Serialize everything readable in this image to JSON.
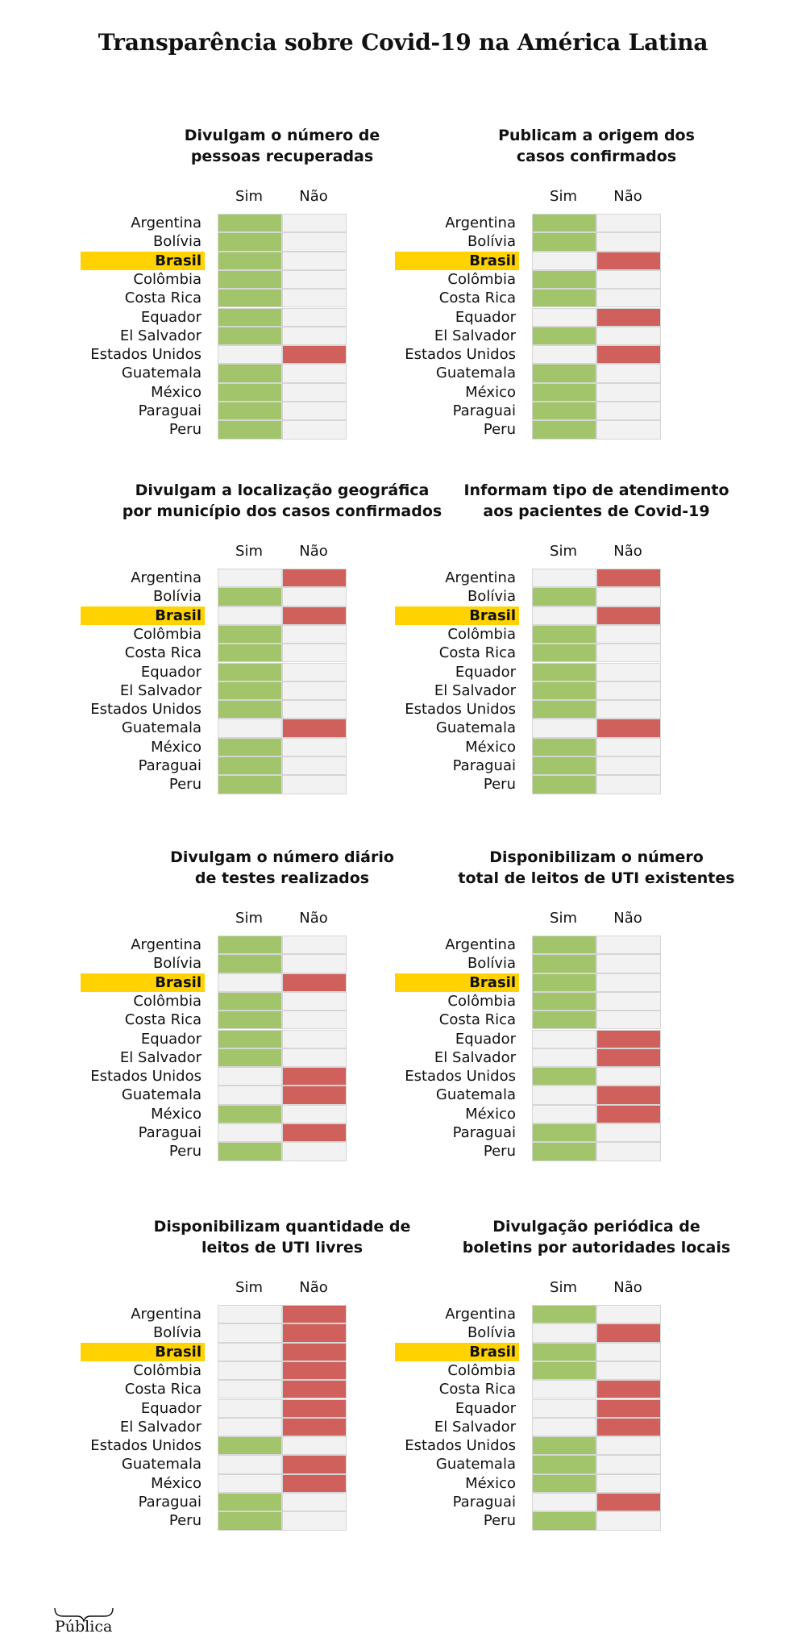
{
  "title": "Transparência sobre Covid-19 na América Latina",
  "logo_text": "Pública",
  "colors": {
    "sim": "#a2c46a",
    "nao": "#d0605c",
    "empty": "#f2f2f2",
    "highlight": "#ffd200"
  },
  "highlight_country": "Brasil",
  "chart_data": [
    {
      "type": "table",
      "title_lines": [
        "Divulgam o número de",
        "pessoas recuperadas"
      ],
      "columns": [
        "Sim",
        "Não"
      ],
      "rows": [
        {
          "country": "Argentina",
          "value": "Sim"
        },
        {
          "country": "Bolívia",
          "value": "Sim"
        },
        {
          "country": "Brasil",
          "value": "Sim"
        },
        {
          "country": "Colômbia",
          "value": "Sim"
        },
        {
          "country": "Costa Rica",
          "value": "Sim"
        },
        {
          "country": "Equador",
          "value": "Sim"
        },
        {
          "country": "El Salvador",
          "value": "Sim"
        },
        {
          "country": "Estados Unidos",
          "value": "Não"
        },
        {
          "country": "Guatemala",
          "value": "Sim"
        },
        {
          "country": "México",
          "value": "Sim"
        },
        {
          "country": "Paraguai",
          "value": "Sim"
        },
        {
          "country": "Peru",
          "value": "Sim"
        }
      ]
    },
    {
      "type": "table",
      "title_lines": [
        "Publicam a origem dos",
        "casos confirmados"
      ],
      "columns": [
        "Sim",
        "Não"
      ],
      "rows": [
        {
          "country": "Argentina",
          "value": "Sim"
        },
        {
          "country": "Bolívia",
          "value": "Sim"
        },
        {
          "country": "Brasil",
          "value": "Não"
        },
        {
          "country": "Colômbia",
          "value": "Sim"
        },
        {
          "country": "Costa Rica",
          "value": "Sim"
        },
        {
          "country": "Equador",
          "value": "Não"
        },
        {
          "country": "El Salvador",
          "value": "Sim"
        },
        {
          "country": "Estados Unidos",
          "value": "Não"
        },
        {
          "country": "Guatemala",
          "value": "Sim"
        },
        {
          "country": "México",
          "value": "Sim"
        },
        {
          "country": "Paraguai",
          "value": "Sim"
        },
        {
          "country": "Peru",
          "value": "Sim"
        }
      ]
    },
    {
      "type": "table",
      "title_lines": [
        "Divulgam a localização geográfica",
        "por município dos casos confirmados"
      ],
      "columns": [
        "Sim",
        "Não"
      ],
      "rows": [
        {
          "country": "Argentina",
          "value": "Não"
        },
        {
          "country": "Bolívia",
          "value": "Sim"
        },
        {
          "country": "Brasil",
          "value": "Não"
        },
        {
          "country": "Colômbia",
          "value": "Sim"
        },
        {
          "country": "Costa Rica",
          "value": "Sim"
        },
        {
          "country": "Equador",
          "value": "Sim"
        },
        {
          "country": "El Salvador",
          "value": "Sim"
        },
        {
          "country": "Estados Unidos",
          "value": "Sim"
        },
        {
          "country": "Guatemala",
          "value": "Não"
        },
        {
          "country": "México",
          "value": "Sim"
        },
        {
          "country": "Paraguai",
          "value": "Sim"
        },
        {
          "country": "Peru",
          "value": "Sim"
        }
      ]
    },
    {
      "type": "table",
      "title_lines": [
        "Informam tipo de atendimento",
        "aos pacientes de Covid-19"
      ],
      "columns": [
        "Sim",
        "Não"
      ],
      "rows": [
        {
          "country": "Argentina",
          "value": "Não"
        },
        {
          "country": "Bolívia",
          "value": "Sim"
        },
        {
          "country": "Brasil",
          "value": "Não"
        },
        {
          "country": "Colômbia",
          "value": "Sim"
        },
        {
          "country": "Costa Rica",
          "value": "Sim"
        },
        {
          "country": "Equador",
          "value": "Sim"
        },
        {
          "country": "El Salvador",
          "value": "Sim"
        },
        {
          "country": "Estados Unidos",
          "value": "Sim"
        },
        {
          "country": "Guatemala",
          "value": "Não"
        },
        {
          "country": "México",
          "value": "Sim"
        },
        {
          "country": "Paraguai",
          "value": "Sim"
        },
        {
          "country": "Peru",
          "value": "Sim"
        }
      ]
    },
    {
      "type": "table",
      "title_lines": [
        "Divulgam o número diário",
        "de testes realizados"
      ],
      "columns": [
        "Sim",
        "Não"
      ],
      "rows": [
        {
          "country": "Argentina",
          "value": "Sim"
        },
        {
          "country": "Bolívia",
          "value": "Sim"
        },
        {
          "country": "Brasil",
          "value": "Não"
        },
        {
          "country": "Colômbia",
          "value": "Sim"
        },
        {
          "country": "Costa Rica",
          "value": "Sim"
        },
        {
          "country": "Equador",
          "value": "Sim"
        },
        {
          "country": "El Salvador",
          "value": "Sim"
        },
        {
          "country": "Estados Unidos",
          "value": "Não"
        },
        {
          "country": "Guatemala",
          "value": "Não"
        },
        {
          "country": "México",
          "value": "Sim"
        },
        {
          "country": "Paraguai",
          "value": "Não"
        },
        {
          "country": "Peru",
          "value": "Sim"
        }
      ]
    },
    {
      "type": "table",
      "title_lines": [
        "Disponibilizam o número",
        "total de leitos de UTI existentes"
      ],
      "columns": [
        "Sim",
        "Não"
      ],
      "rows": [
        {
          "country": "Argentina",
          "value": "Sim"
        },
        {
          "country": "Bolívia",
          "value": "Sim"
        },
        {
          "country": "Brasil",
          "value": "Sim"
        },
        {
          "country": "Colômbia",
          "value": "Sim"
        },
        {
          "country": "Costa Rica",
          "value": "Sim"
        },
        {
          "country": "Equador",
          "value": "Não"
        },
        {
          "country": "El Salvador",
          "value": "Não"
        },
        {
          "country": "Estados Unidos",
          "value": "Sim"
        },
        {
          "country": "Guatemala",
          "value": "Não"
        },
        {
          "country": "México",
          "value": "Não"
        },
        {
          "country": "Paraguai",
          "value": "Sim"
        },
        {
          "country": "Peru",
          "value": "Sim"
        }
      ]
    },
    {
      "type": "table",
      "title_lines": [
        "Disponibilizam quantidade de",
        "leitos de UTI livres"
      ],
      "columns": [
        "Sim",
        "Não"
      ],
      "rows": [
        {
          "country": "Argentina",
          "value": "Não"
        },
        {
          "country": "Bolívia",
          "value": "Não"
        },
        {
          "country": "Brasil",
          "value": "Não"
        },
        {
          "country": "Colômbia",
          "value": "Não"
        },
        {
          "country": "Costa Rica",
          "value": "Não"
        },
        {
          "country": "Equador",
          "value": "Não"
        },
        {
          "country": "El Salvador",
          "value": "Não"
        },
        {
          "country": "Estados Unidos",
          "value": "Sim"
        },
        {
          "country": "Guatemala",
          "value": "Não"
        },
        {
          "country": "México",
          "value": "Não"
        },
        {
          "country": "Paraguai",
          "value": "Sim"
        },
        {
          "country": "Peru",
          "value": "Sim"
        }
      ]
    },
    {
      "type": "table",
      "title_lines": [
        "Divulgação periódica de",
        "boletins por autoridades locais"
      ],
      "columns": [
        "Sim",
        "Não"
      ],
      "rows": [
        {
          "country": "Argentina",
          "value": "Sim"
        },
        {
          "country": "Bolívia",
          "value": "Não"
        },
        {
          "country": "Brasil",
          "value": "Sim"
        },
        {
          "country": "Colômbia",
          "value": "Sim"
        },
        {
          "country": "Costa Rica",
          "value": "Não"
        },
        {
          "country": "Equador",
          "value": "Não"
        },
        {
          "country": "El Salvador",
          "value": "Não"
        },
        {
          "country": "Estados Unidos",
          "value": "Sim"
        },
        {
          "country": "Guatemala",
          "value": "Sim"
        },
        {
          "country": "México",
          "value": "Sim"
        },
        {
          "country": "Paraguai",
          "value": "Não"
        },
        {
          "country": "Peru",
          "value": "Sim"
        }
      ]
    }
  ]
}
